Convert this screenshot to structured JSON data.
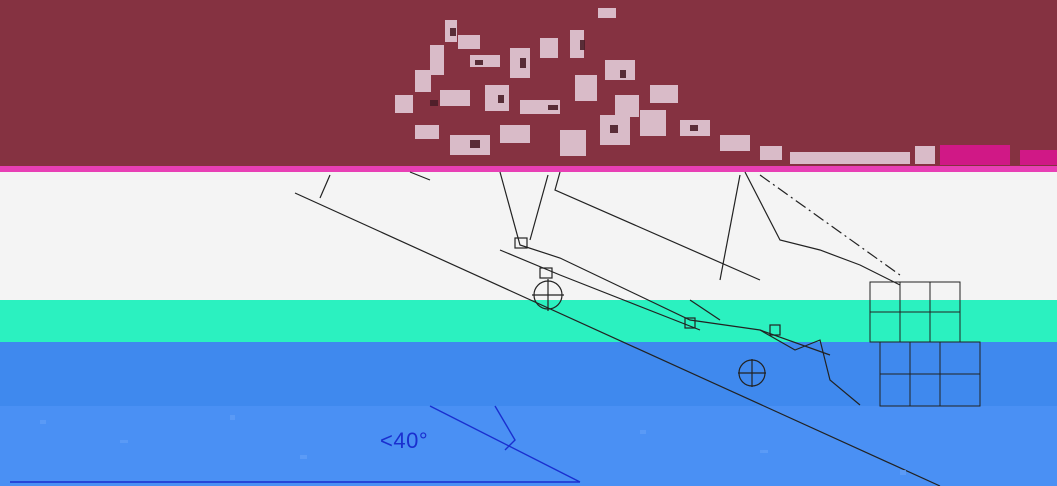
{
  "colors": {
    "band_maroon": "#853241",
    "band_magenta": "#e83fb5",
    "band_paper": "#f4f4f4",
    "band_teal": "#2bf1c0",
    "band_blue": "#3f89ee",
    "band_blue_light": "#4a90f4",
    "ink_dark": "#222222",
    "ink_blue": "#1a2fcf",
    "noise_light": "#e8d3e0"
  },
  "drawing": {
    "angle_label": "<40°"
  }
}
